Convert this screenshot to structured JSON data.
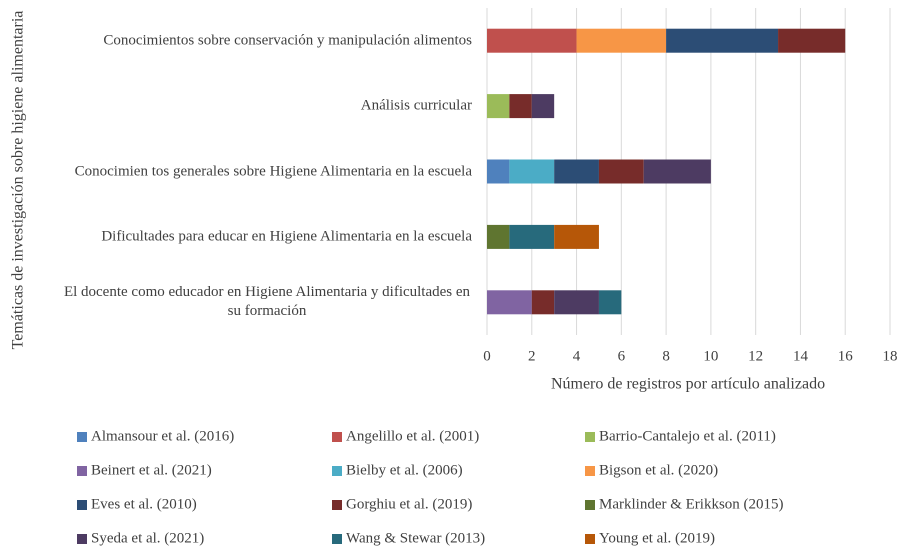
{
  "chart_data": {
    "type": "stacked-bar-horizontal",
    "categories": [
      "Conocimientos sobre conservación y manipulación alimentos",
      "Análisis curricular",
      "Conocimien tos generales sobre Higiene Alimentaria en la escuela",
      "Dificultades para educar en Higiene Alimentaria en la escuela",
      "El docente como educador en Higiene Alimentaria y dificultades en su formación"
    ],
    "series": [
      {
        "name": "Almansour et al. (2016)",
        "color": "#4f81bd",
        "values": [
          0,
          0,
          1,
          0,
          0
        ]
      },
      {
        "name": "Angelillo et al. (2001)",
        "color": "#c0504d",
        "values": [
          4,
          0,
          0,
          0,
          0
        ]
      },
      {
        "name": "Barrio-Cantalejo et al. (2011)",
        "color": "#9bbb59",
        "values": [
          0,
          1,
          0,
          0,
          0
        ]
      },
      {
        "name": "Beinert et al. (2021)",
        "color": "#8064a2",
        "values": [
          0,
          0,
          0,
          0,
          2
        ]
      },
      {
        "name": "Bielby et al. (2006)",
        "color": "#4bacc6",
        "values": [
          0,
          0,
          2,
          0,
          0
        ]
      },
      {
        "name": "Bigson et al. (2020)",
        "color": "#f79646",
        "values": [
          4,
          0,
          0,
          0,
          0
        ]
      },
      {
        "name": "Eves et al. (2010)",
        "color": "#2c4d75",
        "values": [
          5,
          0,
          2,
          0,
          0
        ]
      },
      {
        "name": "Gorghiu et al. (2019)",
        "color": "#772c2a",
        "values": [
          3,
          1,
          2,
          0,
          1
        ]
      },
      {
        "name": "Marklinder & Erikkson (2015)",
        "color": "#5f7530",
        "values": [
          0,
          0,
          0,
          1,
          0
        ]
      },
      {
        "name": "Syeda et al. (2021)",
        "color": "#4d3b62",
        "values": [
          0,
          1,
          3,
          0,
          2
        ]
      },
      {
        "name": "Wang & Stewar (2013)",
        "color": "#276a7c",
        "values": [
          0,
          0,
          0,
          2,
          1
        ]
      },
      {
        "name": "Young et al. (2019)",
        "color": "#b65708",
        "values": [
          0,
          0,
          0,
          2,
          0
        ]
      }
    ],
    "xlabel": "Número de registros por artículo analizado",
    "ylabel": "Temáticas de investigación sobre higiene alimentaria",
    "xlim": [
      0,
      18
    ],
    "xticks": [
      0,
      2,
      4,
      6,
      8,
      10,
      12,
      14,
      16,
      18
    ],
    "grid": true,
    "legend": "bottom"
  }
}
